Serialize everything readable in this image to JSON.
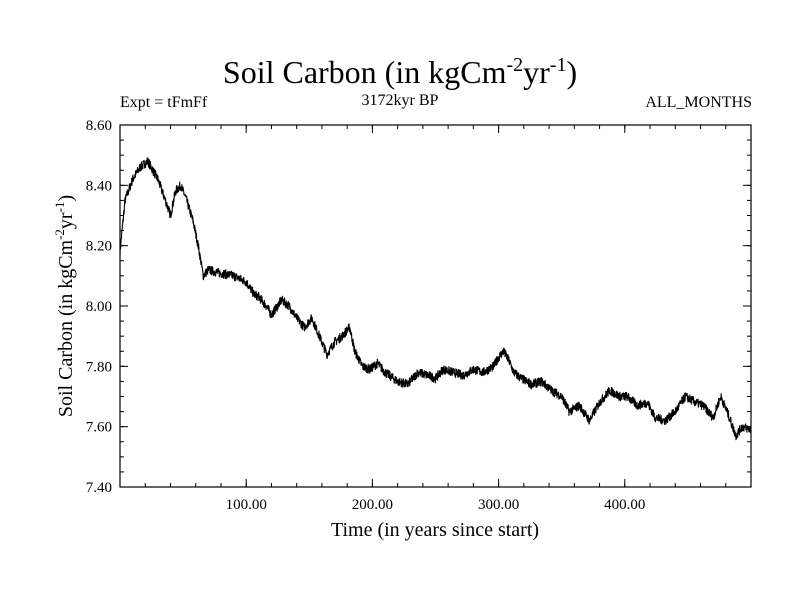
{
  "header": {
    "title_main": "Soil Carbon (in kgCm",
    "title_exp1": "-2",
    "title_mid": "yr",
    "title_exp2": "-1",
    "title_end": ")",
    "expt": "Expt = tFmFf",
    "period": "3172kyr BP",
    "months": "ALL_MONTHS"
  },
  "chart_data": {
    "type": "line",
    "title": "Soil Carbon (in kgCm-2yr-1)",
    "xlabel": "Time (in years since start)",
    "ylabel": "Soil Carbon (in kgCm-2yr-1)",
    "xlim": [
      0,
      500
    ],
    "ylim": [
      7.4,
      8.6
    ],
    "x_ticks": [
      100,
      200,
      300,
      400
    ],
    "x_tick_labels": [
      "100.00",
      "200.00",
      "300.00",
      "400.00"
    ],
    "y_ticks": [
      7.4,
      7.6,
      7.8,
      8.0,
      8.2,
      8.4,
      8.6
    ],
    "y_tick_labels": [
      "7.40",
      "7.60",
      "7.80",
      "8.00",
      "8.20",
      "8.40",
      "8.60"
    ],
    "noise_amplitude": 0.015,
    "series": [
      {
        "name": "Soil Carbon",
        "x": [
          0,
          4,
          10,
          16,
          22,
          26,
          30,
          36,
          40,
          44,
          48,
          52,
          58,
          62,
          66,
          70,
          78,
          90,
          100,
          106,
          110,
          116,
          120,
          128,
          134,
          140,
          146,
          152,
          158,
          164,
          170,
          176,
          182,
          186,
          192,
          198,
          204,
          210,
          220,
          228,
          236,
          244,
          250,
          256,
          264,
          272,
          280,
          288,
          296,
          300,
          304,
          308,
          312,
          318,
          326,
          334,
          342,
          350,
          356,
          364,
          372,
          380,
          388,
          396,
          402,
          410,
          418,
          424,
          432,
          440,
          448,
          456,
          462,
          470,
          476,
          482,
          488,
          493,
          500
        ],
        "values": [
          8.18,
          8.35,
          8.42,
          8.46,
          8.48,
          8.45,
          8.42,
          8.35,
          8.3,
          8.38,
          8.4,
          8.36,
          8.28,
          8.2,
          8.1,
          8.12,
          8.11,
          8.1,
          8.08,
          8.04,
          8.03,
          8.0,
          7.97,
          8.02,
          8.0,
          7.96,
          7.93,
          7.96,
          7.9,
          7.84,
          7.88,
          7.9,
          7.93,
          7.85,
          7.8,
          7.79,
          7.81,
          7.78,
          7.75,
          7.74,
          7.78,
          7.77,
          7.76,
          7.79,
          7.78,
          7.77,
          7.79,
          7.78,
          7.8,
          7.83,
          7.85,
          7.82,
          7.78,
          7.76,
          7.74,
          7.75,
          7.72,
          7.7,
          7.65,
          7.67,
          7.62,
          7.68,
          7.72,
          7.7,
          7.7,
          7.67,
          7.68,
          7.63,
          7.62,
          7.65,
          7.7,
          7.68,
          7.67,
          7.63,
          7.7,
          7.64,
          7.57,
          7.6,
          7.59
        ]
      }
    ]
  }
}
